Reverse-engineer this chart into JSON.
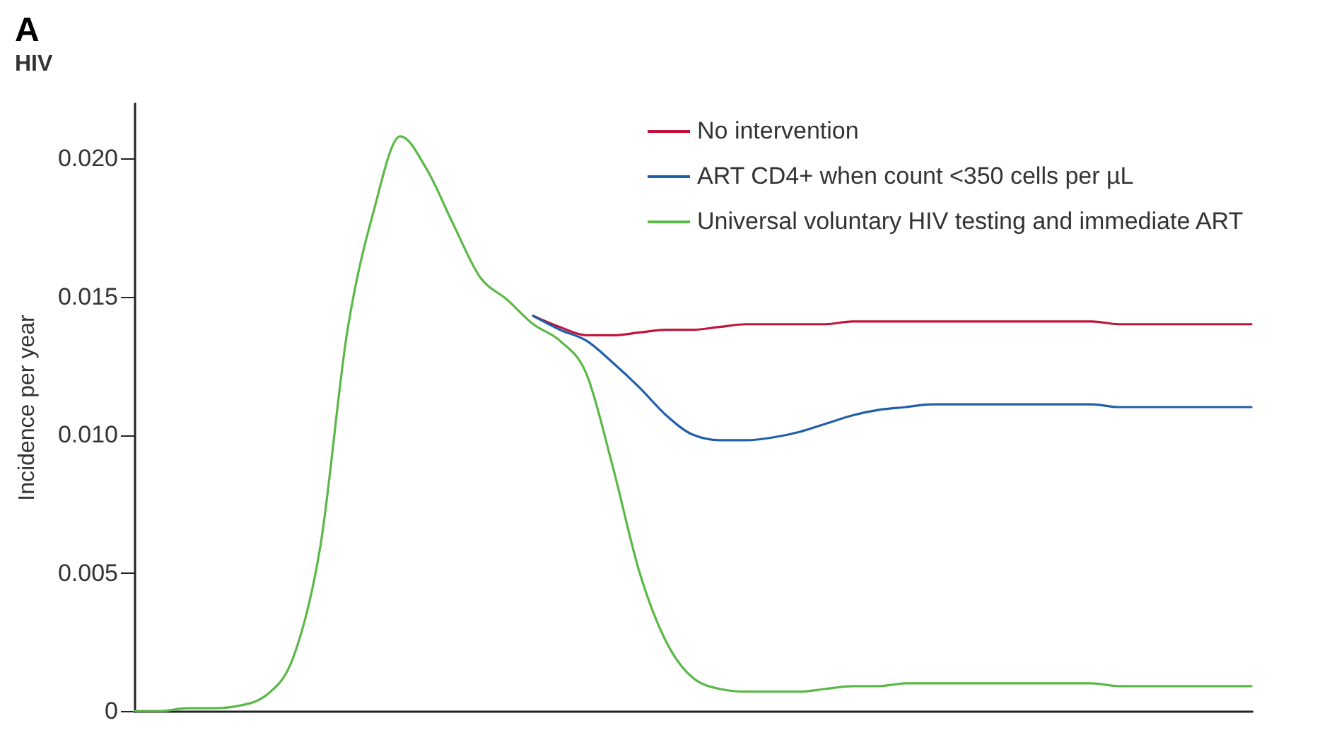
{
  "chart_data": {
    "type": "line",
    "title": "A",
    "subtitle": "HIV",
    "ylabel": "Incidence per year",
    "categories": [
      null,
      null,
      null,
      null,
      null,
      null,
      null,
      null,
      null,
      null,
      null,
      null,
      null,
      null,
      null,
      null,
      null,
      null,
      null,
      null,
      null,
      null,
      null,
      null,
      null,
      null,
      null,
      null,
      null,
      null,
      null,
      null,
      null,
      null,
      null,
      null,
      null,
      null,
      null,
      null,
      null,
      null,
      null
    ],
    "series": [
      {
        "name": "No intervention",
        "color": "#c0143c",
        "values": [
          null,
          null,
          null,
          null,
          null,
          null,
          null,
          null,
          null,
          null,
          null,
          null,
          null,
          null,
          null,
          0.0143,
          0.0139,
          0.0136,
          0.0136,
          0.0137,
          0.0138,
          0.0138,
          0.0139,
          0.014,
          0.014,
          0.014,
          0.014,
          0.0141,
          0.0141,
          0.0141,
          0.0141,
          0.0141,
          0.0141,
          0.0141,
          0.0141,
          0.0141,
          0.0141,
          0.014,
          0.014,
          0.014,
          0.014,
          0.014,
          0.014
        ]
      },
      {
        "name": "ART CD4+ when count <350 cells per µL",
        "color": "#1f5fa8",
        "values": [
          null,
          null,
          null,
          null,
          null,
          null,
          null,
          null,
          null,
          null,
          null,
          null,
          null,
          null,
          null,
          0.0143,
          0.0138,
          0.0134,
          0.0126,
          0.0117,
          0.0107,
          0.01,
          0.0098,
          0.0098,
          0.0099,
          0.0101,
          0.0104,
          0.0107,
          0.0109,
          0.011,
          0.0111,
          0.0111,
          0.0111,
          0.0111,
          0.0111,
          0.0111,
          0.0111,
          0.011,
          0.011,
          0.011,
          0.011,
          0.011,
          0.011
        ]
      },
      {
        "name": "Universal voluntary HIV testing and immediate ART",
        "color": "#5ab946",
        "values": [
          0,
          0,
          0.0001,
          0.0001,
          0.0002,
          0.0006,
          0.002,
          0.006,
          0.0137,
          0.0181,
          0.0208,
          0.0196,
          0.0176,
          0.0157,
          0.0149,
          0.014,
          0.0134,
          0.0122,
          0.0088,
          0.005,
          0.0025,
          0.0012,
          0.0008,
          0.0007,
          0.0007,
          0.0007,
          0.0008,
          0.0009,
          0.0009,
          0.001,
          0.001,
          0.001,
          0.001,
          0.001,
          0.001,
          0.001,
          0.001,
          0.0009,
          0.0009,
          0.0009,
          0.0009,
          0.0009,
          0.0009
        ]
      }
    ],
    "ylim": [
      0,
      0.022
    ],
    "yticks": [
      0,
      {
        "value": 0.005,
        "label": "0.005"
      },
      {
        "value": 0.01,
        "label": "0.010"
      },
      {
        "value": 0.015,
        "label": "0.015"
      },
      {
        "value": 0.02,
        "label": "0.020"
      }
    ],
    "legend": "top right",
    "tick_labels": "y"
  }
}
